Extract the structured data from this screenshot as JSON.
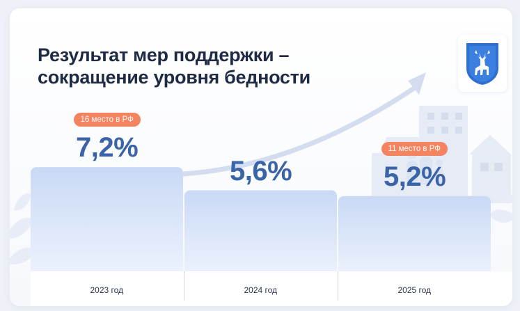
{
  "title_lines": [
    "Результат мер поддержки –",
    "сокращение уровня бедности"
  ],
  "colors": {
    "bar_top": "#c8d8f4",
    "bar_bottom": "#eaf1fc",
    "value": "#3a63a8",
    "badge": "#f4835f",
    "title": "#1f2a44"
  },
  "icons": {
    "emblem": "deer-coat-of-arms-icon",
    "arrow": "growth-arrow-icon",
    "family": "family-icon"
  },
  "chart_data": {
    "type": "bar",
    "categories": [
      "2023 год",
      "2024 год",
      "2025 год"
    ],
    "values": [
      7.2,
      5.6,
      5.2
    ],
    "value_labels": [
      "7,2%",
      "5,6%",
      "5,2%"
    ],
    "annotations": [
      {
        "category": "2023 год",
        "text": "16 место в РФ"
      },
      {
        "category": "2025 год",
        "text": "11 место в РФ"
      }
    ],
    "title": "Результат мер поддержки – сокращение уровня бедности",
    "xlabel": "",
    "ylabel": "",
    "ylim": [
      0,
      8
    ],
    "grid": false,
    "legend": "none"
  }
}
